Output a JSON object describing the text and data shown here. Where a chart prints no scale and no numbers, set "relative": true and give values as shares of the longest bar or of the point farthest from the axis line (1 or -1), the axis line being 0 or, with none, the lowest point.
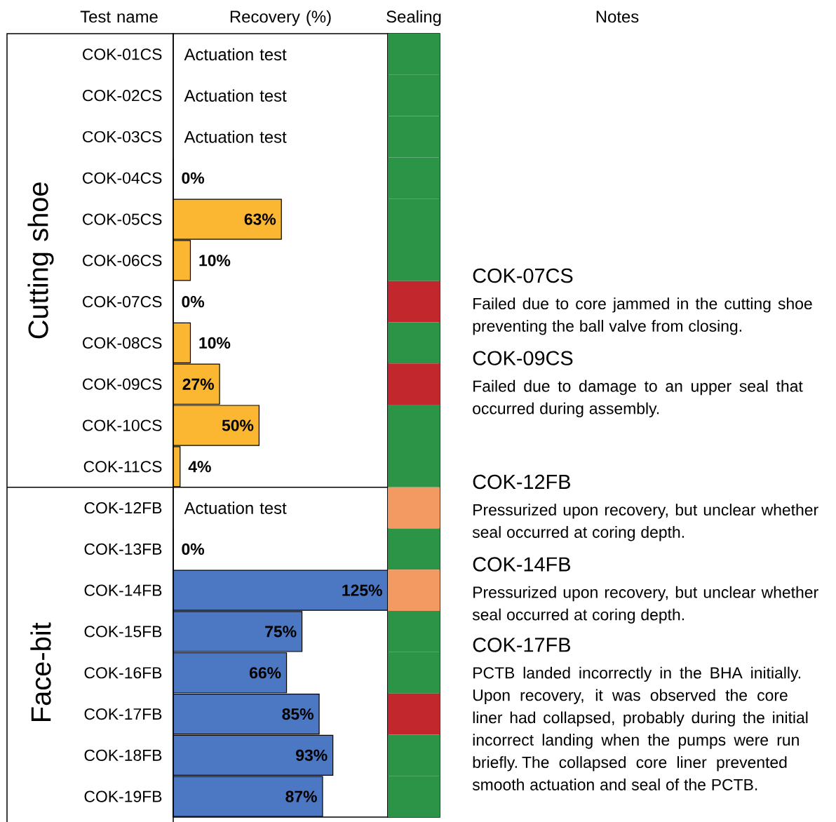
{
  "chart_data": [
    {
      "type": "bar",
      "orientation": "horizontal",
      "xlabel": "Recovery (%)",
      "ylabel": "Test name",
      "categories": [
        "COK-01CS",
        "COK-02CS",
        "COK-03CS",
        "COK-04CS",
        "COK-05CS",
        "COK-06CS",
        "COK-07CS",
        "COK-08CS",
        "COK-09CS",
        "COK-10CS",
        "COK-11CS",
        "COK-12FB",
        "COK-13FB",
        "COK-14FB",
        "COK-15FB",
        "COK-16FB",
        "COK-17FB",
        "COK-18FB",
        "COK-19FB"
      ],
      "values": [
        null,
        null,
        null,
        0,
        63,
        10,
        0,
        10,
        27,
        50,
        4,
        null,
        0,
        125,
        75,
        66,
        85,
        93,
        87
      ],
      "value_labels": [
        "Actuation test",
        "Actuation test",
        "Actuation test",
        "0%",
        "63%",
        "10%",
        "0%",
        "10%",
        "27%",
        "50%",
        "4%",
        "Actuation test",
        "0%",
        "125%",
        "75%",
        "66%",
        "85%",
        "93%",
        "87%"
      ],
      "colors": [
        "#fbb731",
        "#fbb731",
        "#fbb731",
        "#fbb731",
        "#fbb731",
        "#fbb731",
        "#fbb731",
        "#fbb731",
        "#fbb731",
        "#fbb731",
        "#fbb731",
        "#4b77c3",
        "#4b77c3",
        "#4b77c3",
        "#4b77c3",
        "#4b77c3",
        "#4b77c3",
        "#4b77c3",
        "#4b77c3"
      ],
      "xlim": [
        0,
        125
      ],
      "tick_labels": "y",
      "annotations": [
        "Cutting shoe",
        "Face-bit",
        "Notes",
        "COK-07CS",
        "Failed due to core jammed in the cutting shoe preventing the ball valve from closing.",
        "COK-09CS",
        "Failed due to damage to an upper seal that occurred during assembly.",
        "COK-12FB",
        "Pressurized upon recovery, but unclear whether seal occurred at coring depth.",
        "COK-14FB",
        "Pressurized upon recovery, but unclear whether seal occurred at coring depth.",
        "COK-17FB",
        "PCTB landed incorrectly in the BHA initially. Upon recovery, it was observed the core liner had collapsed, probably during the initial incorrect landing when the pumps were run briefly. The collapsed core liner prevented smooth actuation and seal of the PCTB."
      ]
    },
    {
      "type": "bar",
      "orientation": "horizontal",
      "relative": true,
      "xlabel": "Sealing",
      "categories": [
        null,
        null,
        null,
        null,
        null,
        null,
        null,
        null,
        null,
        null,
        null,
        null,
        null,
        null,
        null,
        null,
        null,
        null,
        null
      ],
      "values": [
        1,
        1,
        1,
        1,
        1,
        1,
        1,
        1,
        1,
        1,
        1,
        1,
        1,
        1,
        1,
        1,
        1,
        1,
        1
      ],
      "colors": [
        "#2b9446",
        "#2b9446",
        "#2b9446",
        "#2b9446",
        "#2b9446",
        "#2b9446",
        "#c1272d",
        "#2b9446",
        "#c1272d",
        "#2b9446",
        "#2b9446",
        "#f39a62",
        "#2b9446",
        "#f39a62",
        "#2b9446",
        "#2b9446",
        "#c1272d",
        "#2b9446",
        "#2b9446"
      ]
    }
  ]
}
